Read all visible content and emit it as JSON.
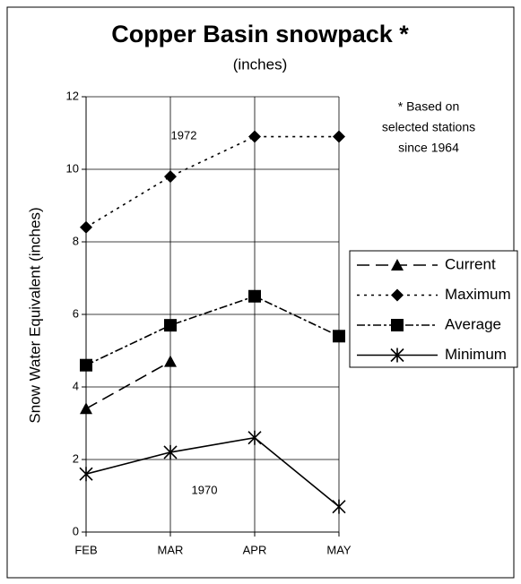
{
  "chart_data": {
    "type": "line",
    "title": "Copper Basin snowpack *",
    "subtitle": "(inches)",
    "y_label": "Snow Water Equivalent (inches)",
    "note": [
      "* Based on",
      "selected stations",
      "since 1964"
    ],
    "annotations": [
      "1972",
      "1970"
    ],
    "categories": [
      "FEB",
      "MAR",
      "APR",
      "MAY"
    ],
    "series": [
      {
        "name": "Current",
        "color": "#000000",
        "marker": "triangle",
        "dash": "long-dash",
        "values": [
          3.4,
          4.7,
          null,
          null
        ]
      },
      {
        "name": "Maximum",
        "color": "#000000",
        "marker": "diamond",
        "dash": "dotted",
        "values": [
          8.4,
          9.8,
          10.9,
          10.9
        ]
      },
      {
        "name": "Average",
        "color": "#000000",
        "marker": "square",
        "dash": "dash-dot",
        "values": [
          4.6,
          5.7,
          6.5,
          5.4
        ]
      },
      {
        "name": "Minimum",
        "color": "#000000",
        "marker": "star",
        "dash": "solid",
        "values": [
          1.6,
          2.2,
          2.6,
          0.7
        ]
      }
    ],
    "ylim": [
      0,
      12
    ],
    "yticks": [
      0,
      2,
      4,
      6,
      8,
      10,
      12
    ],
    "grid": true,
    "legend": "right"
  }
}
